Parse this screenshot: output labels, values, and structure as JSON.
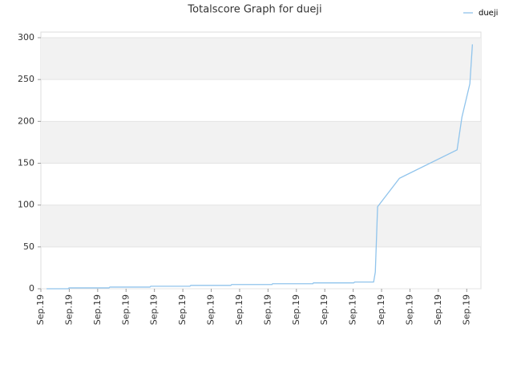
{
  "chart_data": {
    "type": "line",
    "title": "Totalscore Graph for dueji",
    "x": [
      0.2,
      0.96,
      0.99,
      2.4,
      2.43,
      3.84,
      3.87,
      5.25,
      5.28,
      6.69,
      6.72,
      8.14,
      8.16,
      9.58,
      9.6,
      11.02,
      11.05,
      11.72,
      11.78,
      11.86,
      12.63,
      14.66,
      14.83,
      15.11,
      15.2
    ],
    "series": [
      {
        "name": "dueji",
        "color": "#90c4ec",
        "values": [
          0,
          0,
          1,
          1,
          2,
          2,
          3,
          3,
          4,
          4,
          5,
          5,
          6,
          6,
          7,
          7,
          8,
          8,
          20,
          98,
          132,
          166,
          205,
          245,
          292
        ]
      }
    ],
    "xlim": [
      0,
      15.5
    ],
    "xticks": [
      {
        "value": 0,
        "label": "Sep.19"
      },
      {
        "value": 1,
        "label": "Sep.19"
      },
      {
        "value": 2,
        "label": "Sep.19"
      },
      {
        "value": 3,
        "label": "Sep.19"
      },
      {
        "value": 4,
        "label": "Sep.19"
      },
      {
        "value": 5,
        "label": "Sep.19"
      },
      {
        "value": 6,
        "label": "Sep.19"
      },
      {
        "value": 7,
        "label": "Sep.19"
      },
      {
        "value": 8,
        "label": "Sep.19"
      },
      {
        "value": 9,
        "label": "Sep.19"
      },
      {
        "value": 10,
        "label": "Sep.19"
      },
      {
        "value": 11,
        "label": "Sep.19"
      },
      {
        "value": 12,
        "label": "Sep.19"
      },
      {
        "value": 13,
        "label": "Sep.19"
      },
      {
        "value": 14,
        "label": "Sep.19"
      },
      {
        "value": 15,
        "label": "Sep.19"
      }
    ],
    "ylim": [
      0,
      306.7
    ],
    "yticks": [
      0,
      50,
      100,
      150,
      200,
      250,
      300
    ],
    "grid": true,
    "legend": "top-right"
  }
}
